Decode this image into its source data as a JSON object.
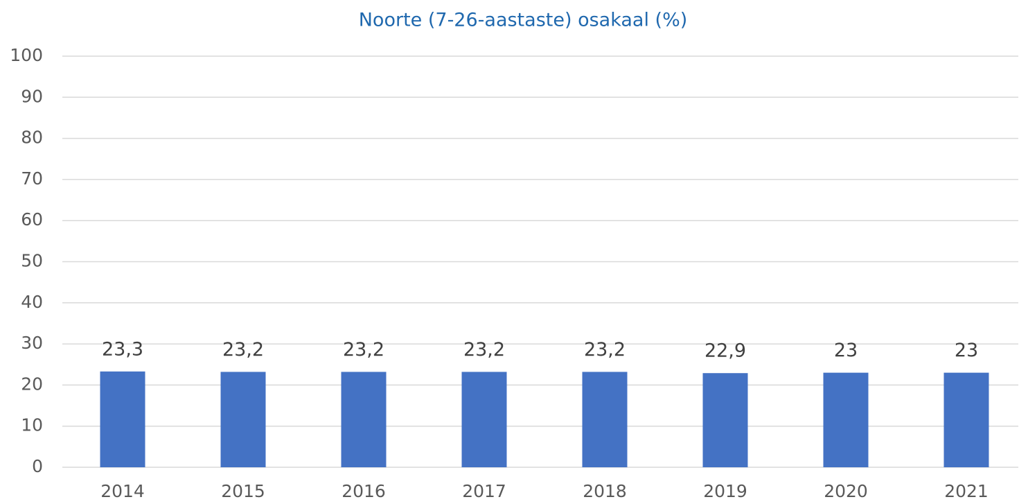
{
  "chart_data": {
    "type": "bar",
    "title": "Noorte (7-26-aastaste) osakaal (%)",
    "categories": [
      "2014",
      "2015",
      "2016",
      "2017",
      "2018",
      "2019",
      "2020",
      "2021"
    ],
    "values": [
      23.3,
      23.2,
      23.2,
      23.2,
      23.2,
      22.9,
      23,
      23
    ],
    "value_labels": [
      "23,3",
      "23,2",
      "23,2",
      "23,2",
      "23,2",
      "22,9",
      "23",
      "23"
    ],
    "color": "#4472c4",
    "ylim": [
      0,
      100
    ],
    "yticks": [
      0,
      10,
      20,
      30,
      40,
      50,
      60,
      70,
      80,
      90,
      100
    ],
    "grid": true
  }
}
